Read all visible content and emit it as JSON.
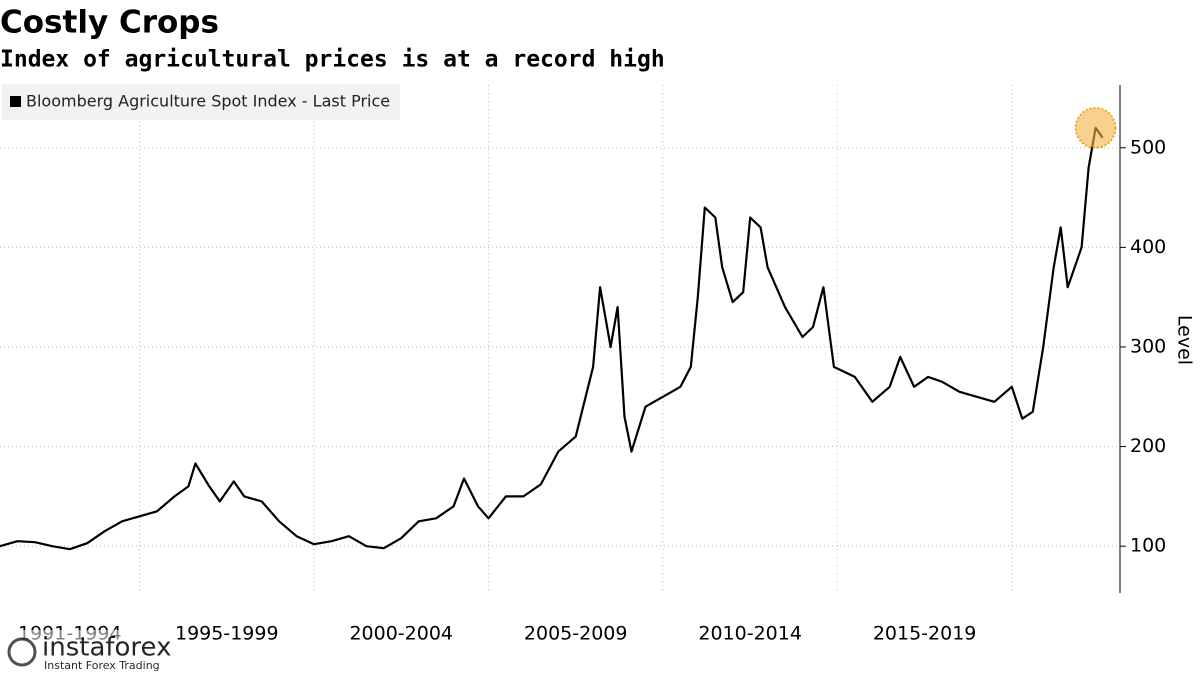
{
  "chart_data": {
    "type": "line",
    "title": "Costly Crops",
    "subtitle": "Index of agricultural prices is at a record high",
    "y_label": "Level",
    "series": [
      {
        "name": "Bloomberg Agriculture Spot Index - Last Price",
        "color": "#000000",
        "x": [
          1991.0,
          1991.5,
          1992.0,
          1992.5,
          1993.0,
          1993.5,
          1994.0,
          1994.5,
          1995.0,
          1995.5,
          1996.0,
          1996.4,
          1996.6,
          1997.0,
          1997.3,
          1997.7,
          1998.0,
          1998.5,
          1999.0,
          1999.5,
          2000.0,
          2000.5,
          2001.0,
          2001.5,
          2002.0,
          2002.5,
          2003.0,
          2003.5,
          2004.0,
          2004.3,
          2004.7,
          2005.0,
          2005.5,
          2006.0,
          2006.5,
          2007.0,
          2007.5,
          2008.0,
          2008.2,
          2008.5,
          2008.7,
          2008.9,
          2009.1,
          2009.5,
          2010.0,
          2010.5,
          2010.8,
          2011.0,
          2011.2,
          2011.5,
          2011.7,
          2012.0,
          2012.3,
          2012.5,
          2012.8,
          2013.0,
          2013.5,
          2014.0,
          2014.3,
          2014.6,
          2014.9,
          2015.5,
          2016.0,
          2016.5,
          2016.8,
          2017.2,
          2017.6,
          2018.0,
          2018.5,
          2019.0,
          2019.5,
          2020.0,
          2020.3,
          2020.6,
          2020.9,
          2021.2,
          2021.4,
          2021.6,
          2022.0,
          2022.2,
          2022.4,
          2022.6
        ],
        "values": [
          100,
          105,
          104,
          100,
          97,
          103,
          115,
          125,
          130,
          135,
          150,
          160,
          183,
          160,
          145,
          165,
          150,
          145,
          125,
          110,
          102,
          105,
          110,
          100,
          98,
          108,
          125,
          128,
          140,
          168,
          140,
          128,
          150,
          150,
          162,
          195,
          210,
          280,
          360,
          300,
          340,
          230,
          195,
          240,
          250,
          260,
          280,
          350,
          440,
          430,
          380,
          345,
          355,
          430,
          420,
          380,
          340,
          310,
          320,
          360,
          280,
          270,
          245,
          260,
          290,
          260,
          270,
          265,
          255,
          250,
          245,
          260,
          228,
          235,
          300,
          380,
          420,
          360,
          400,
          480,
          520,
          510
        ]
      }
    ],
    "xlim": [
      1991,
      2023.1
    ],
    "xticks": [
      1995,
      2000,
      2005,
      2010,
      2015,
      2020
    ],
    "periods": [
      {
        "label": "1991-1994",
        "start": 1991,
        "end": 1995
      },
      {
        "label": "1995-1999",
        "start": 1995,
        "end": 2000
      },
      {
        "label": "2000-2004",
        "start": 2000,
        "end": 2005
      },
      {
        "label": "2005-2009",
        "start": 2005,
        "end": 2010
      },
      {
        "label": "2010-2014",
        "start": 2010,
        "end": 2015
      },
      {
        "label": "2015-2019",
        "start": 2015,
        "end": 2020
      }
    ],
    "ylim": [
      53,
      563
    ],
    "yticks": [
      100,
      200,
      300,
      400,
      500
    ],
    "grid": true,
    "legend": "top-left",
    "watermark": {
      "name": "instaforex",
      "tagline": "Instant Forex Trading"
    }
  }
}
